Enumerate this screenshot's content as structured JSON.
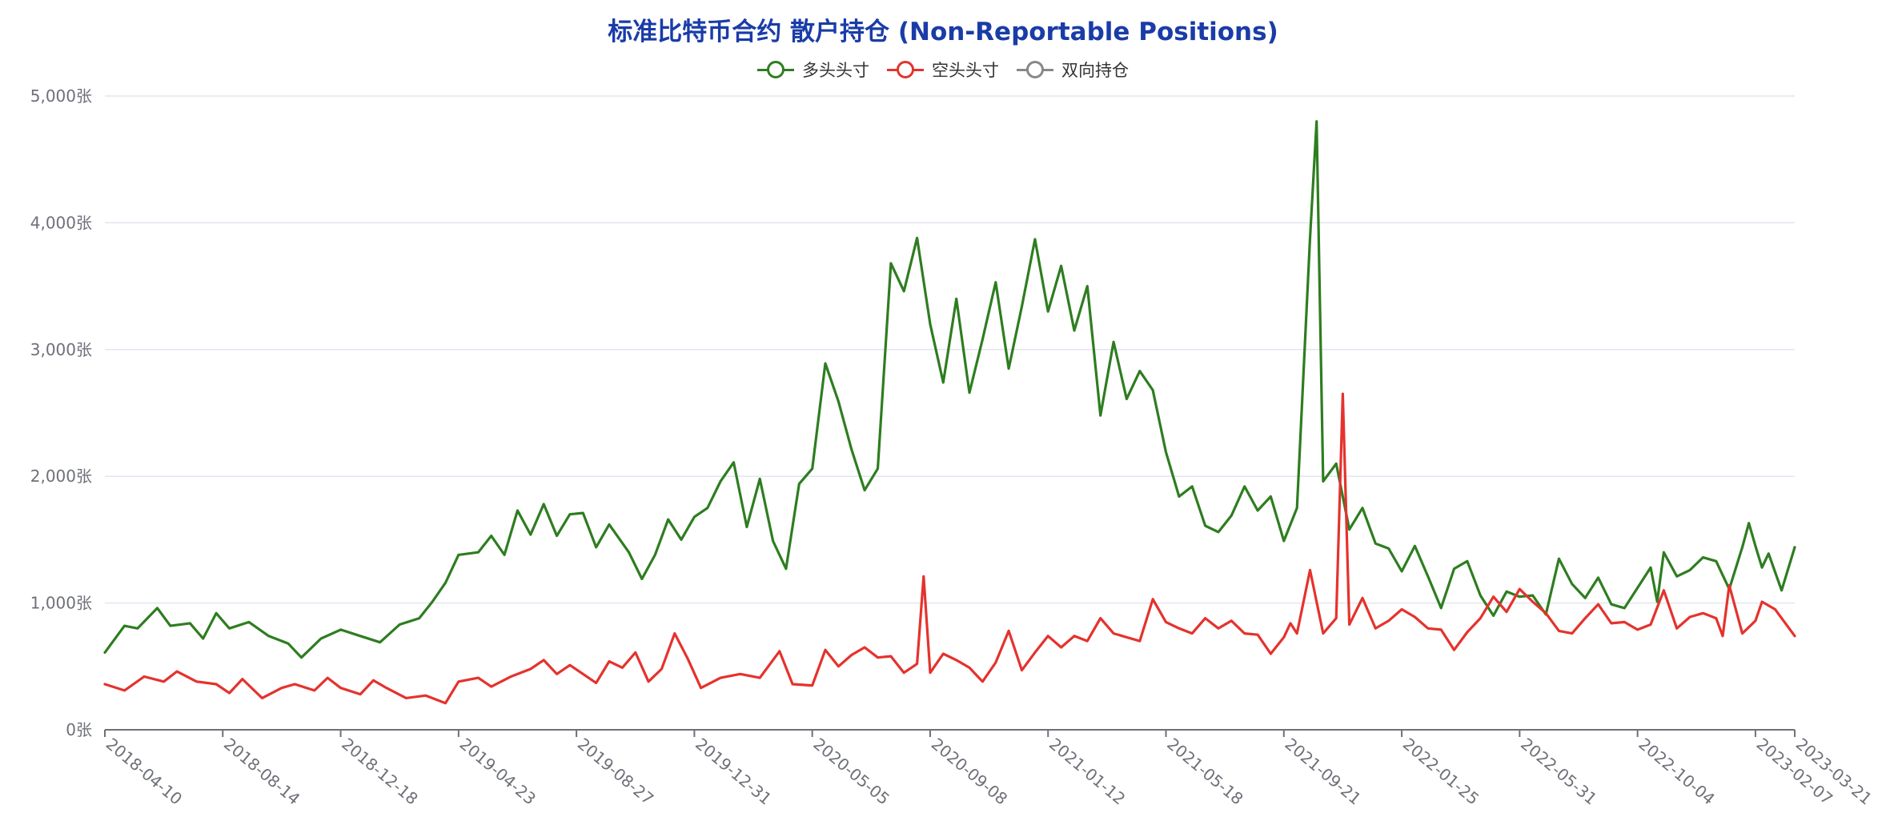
{
  "chart_data": {
    "type": "line",
    "title": "标准比特币合约 散户持仓 (Non-Reportable Positions)",
    "ylim": [
      0,
      5000
    ],
    "y_unit": "张",
    "y_ticks": [
      "0张",
      "1,000张",
      "2,000张",
      "3,000张",
      "4,000张",
      "5,000张"
    ],
    "y_tick_values": [
      0,
      1000,
      2000,
      3000,
      4000,
      5000
    ],
    "x_ticks": [
      "2018-04-10",
      "2018-08-14",
      "2018-12-18",
      "2019-04-23",
      "2019-08-27",
      "2019-12-31",
      "2020-05-05",
      "2020-09-08",
      "2021-01-12",
      "2021-05-18",
      "2021-09-21",
      "2022-01-25",
      "2022-05-31",
      "2022-10-04",
      "2023-02-07",
      "2023-03-21"
    ],
    "x_start": "2018-04-10",
    "x_end": "2023-03-21",
    "grid": true,
    "legend_position": "top-center",
    "title_color": "#1a3ca8",
    "series": [
      {
        "name": "多头头寸",
        "color": "#2e7d20",
        "visible": true,
        "points": [
          [
            "2018-04-10",
            610
          ],
          [
            "2018-05-01",
            820
          ],
          [
            "2018-05-15",
            800
          ],
          [
            "2018-06-05",
            960
          ],
          [
            "2018-06-19",
            820
          ],
          [
            "2018-07-10",
            840
          ],
          [
            "2018-07-24",
            720
          ],
          [
            "2018-08-07",
            920
          ],
          [
            "2018-08-21",
            800
          ],
          [
            "2018-09-11",
            850
          ],
          [
            "2018-10-02",
            740
          ],
          [
            "2018-10-23",
            680
          ],
          [
            "2018-11-06",
            570
          ],
          [
            "2018-11-27",
            720
          ],
          [
            "2018-12-18",
            790
          ],
          [
            "2019-01-08",
            740
          ],
          [
            "2019-01-29",
            690
          ],
          [
            "2019-02-19",
            830
          ],
          [
            "2019-03-12",
            880
          ],
          [
            "2019-03-26",
            1010
          ],
          [
            "2019-04-09",
            1160
          ],
          [
            "2019-04-23",
            1380
          ],
          [
            "2019-05-14",
            1400
          ],
          [
            "2019-05-28",
            1530
          ],
          [
            "2019-06-11",
            1380
          ],
          [
            "2019-06-25",
            1730
          ],
          [
            "2019-07-09",
            1540
          ],
          [
            "2019-07-23",
            1780
          ],
          [
            "2019-08-06",
            1530
          ],
          [
            "2019-08-20",
            1700
          ],
          [
            "2019-09-03",
            1710
          ],
          [
            "2019-09-17",
            1440
          ],
          [
            "2019-10-01",
            1620
          ],
          [
            "2019-10-22",
            1400
          ],
          [
            "2019-11-05",
            1190
          ],
          [
            "2019-11-19",
            1380
          ],
          [
            "2019-12-03",
            1660
          ],
          [
            "2019-12-17",
            1500
          ],
          [
            "2019-12-31",
            1680
          ],
          [
            "2020-01-14",
            1750
          ],
          [
            "2020-01-28",
            1960
          ],
          [
            "2020-02-11",
            2110
          ],
          [
            "2020-02-25",
            1600
          ],
          [
            "2020-03-10",
            1980
          ],
          [
            "2020-03-24",
            1490
          ],
          [
            "2020-04-07",
            1270
          ],
          [
            "2020-04-21",
            1940
          ],
          [
            "2020-05-05",
            2060
          ],
          [
            "2020-05-19",
            2890
          ],
          [
            "2020-06-02",
            2590
          ],
          [
            "2020-06-16",
            2210
          ],
          [
            "2020-06-30",
            1890
          ],
          [
            "2020-07-14",
            2060
          ],
          [
            "2020-07-28",
            3680
          ],
          [
            "2020-08-11",
            3460
          ],
          [
            "2020-08-25",
            3880
          ],
          [
            "2020-09-08",
            3200
          ],
          [
            "2020-09-22",
            2740
          ],
          [
            "2020-10-06",
            3400
          ],
          [
            "2020-10-20",
            2660
          ],
          [
            "2020-11-03",
            3080
          ],
          [
            "2020-11-17",
            3530
          ],
          [
            "2020-12-01",
            2850
          ],
          [
            "2020-12-15",
            3340
          ],
          [
            "2020-12-29",
            3870
          ],
          [
            "2021-01-12",
            3300
          ],
          [
            "2021-01-26",
            3660
          ],
          [
            "2021-02-09",
            3150
          ],
          [
            "2021-02-23",
            3500
          ],
          [
            "2021-03-09",
            2480
          ],
          [
            "2021-03-23",
            3060
          ],
          [
            "2021-04-06",
            2610
          ],
          [
            "2021-04-20",
            2830
          ],
          [
            "2021-05-04",
            2680
          ],
          [
            "2021-05-18",
            2190
          ],
          [
            "2021-06-01",
            1840
          ],
          [
            "2021-06-15",
            1920
          ],
          [
            "2021-06-29",
            1610
          ],
          [
            "2021-07-13",
            1560
          ],
          [
            "2021-07-27",
            1690
          ],
          [
            "2021-08-10",
            1920
          ],
          [
            "2021-08-24",
            1730
          ],
          [
            "2021-09-07",
            1840
          ],
          [
            "2021-09-21",
            1490
          ],
          [
            "2021-10-05",
            1750
          ],
          [
            "2021-10-19",
            3880
          ],
          [
            "2021-10-26",
            4800
          ],
          [
            "2021-11-02",
            1960
          ],
          [
            "2021-11-16",
            2100
          ],
          [
            "2021-11-30",
            1580
          ],
          [
            "2021-12-14",
            1750
          ],
          [
            "2021-12-28",
            1470
          ],
          [
            "2022-01-11",
            1430
          ],
          [
            "2022-01-25",
            1250
          ],
          [
            "2022-02-08",
            1450
          ],
          [
            "2022-02-22",
            1210
          ],
          [
            "2022-03-08",
            960
          ],
          [
            "2022-03-22",
            1270
          ],
          [
            "2022-04-05",
            1330
          ],
          [
            "2022-04-19",
            1060
          ],
          [
            "2022-05-03",
            900
          ],
          [
            "2022-05-17",
            1090
          ],
          [
            "2022-05-31",
            1050
          ],
          [
            "2022-06-14",
            1060
          ],
          [
            "2022-06-28",
            910
          ],
          [
            "2022-07-12",
            1350
          ],
          [
            "2022-07-26",
            1150
          ],
          [
            "2022-08-09",
            1040
          ],
          [
            "2022-08-23",
            1200
          ],
          [
            "2022-09-06",
            990
          ],
          [
            "2022-09-20",
            960
          ],
          [
            "2022-10-04",
            1120
          ],
          [
            "2022-10-18",
            1280
          ],
          [
            "2022-10-25",
            1010
          ],
          [
            "2022-11-01",
            1400
          ],
          [
            "2022-11-15",
            1210
          ],
          [
            "2022-11-29",
            1260
          ],
          [
            "2022-12-13",
            1360
          ],
          [
            "2022-12-27",
            1330
          ],
          [
            "2023-01-10",
            1110
          ],
          [
            "2023-01-24",
            1440
          ],
          [
            "2023-01-31",
            1630
          ],
          [
            "2023-02-07",
            1450
          ],
          [
            "2023-02-14",
            1280
          ],
          [
            "2023-02-21",
            1390
          ],
          [
            "2023-03-07",
            1100
          ],
          [
            "2023-03-21",
            1440
          ]
        ]
      },
      {
        "name": "空头头寸",
        "color": "#e5322d",
        "visible": true,
        "points": [
          [
            "2018-04-10",
            360
          ],
          [
            "2018-05-01",
            310
          ],
          [
            "2018-05-22",
            420
          ],
          [
            "2018-06-12",
            380
          ],
          [
            "2018-06-26",
            460
          ],
          [
            "2018-07-17",
            380
          ],
          [
            "2018-08-07",
            360
          ],
          [
            "2018-08-21",
            290
          ],
          [
            "2018-09-04",
            400
          ],
          [
            "2018-09-25",
            250
          ],
          [
            "2018-10-16",
            330
          ],
          [
            "2018-10-30",
            360
          ],
          [
            "2018-11-20",
            310
          ],
          [
            "2018-12-04",
            410
          ],
          [
            "2018-12-18",
            330
          ],
          [
            "2019-01-08",
            280
          ],
          [
            "2019-01-22",
            390
          ],
          [
            "2019-02-05",
            330
          ],
          [
            "2019-02-26",
            250
          ],
          [
            "2019-03-19",
            270
          ],
          [
            "2019-04-09",
            210
          ],
          [
            "2019-04-23",
            380
          ],
          [
            "2019-05-14",
            410
          ],
          [
            "2019-05-28",
            340
          ],
          [
            "2019-06-18",
            420
          ],
          [
            "2019-07-09",
            480
          ],
          [
            "2019-07-23",
            550
          ],
          [
            "2019-08-06",
            440
          ],
          [
            "2019-08-20",
            510
          ],
          [
            "2019-09-03",
            440
          ],
          [
            "2019-09-17",
            370
          ],
          [
            "2019-10-01",
            540
          ],
          [
            "2019-10-15",
            490
          ],
          [
            "2019-10-29",
            610
          ],
          [
            "2019-11-12",
            380
          ],
          [
            "2019-11-26",
            480
          ],
          [
            "2019-12-10",
            760
          ],
          [
            "2019-12-24",
            560
          ],
          [
            "2020-01-07",
            330
          ],
          [
            "2020-01-28",
            410
          ],
          [
            "2020-02-18",
            440
          ],
          [
            "2020-03-10",
            410
          ],
          [
            "2020-03-31",
            620
          ],
          [
            "2020-04-14",
            360
          ],
          [
            "2020-05-05",
            350
          ],
          [
            "2020-05-19",
            630
          ],
          [
            "2020-06-02",
            500
          ],
          [
            "2020-06-16",
            590
          ],
          [
            "2020-06-30",
            650
          ],
          [
            "2020-07-14",
            570
          ],
          [
            "2020-07-28",
            580
          ],
          [
            "2020-08-11",
            450
          ],
          [
            "2020-08-25",
            520
          ],
          [
            "2020-09-01",
            1210
          ],
          [
            "2020-09-08",
            450
          ],
          [
            "2020-09-22",
            600
          ],
          [
            "2020-10-06",
            550
          ],
          [
            "2020-10-20",
            490
          ],
          [
            "2020-11-03",
            380
          ],
          [
            "2020-11-17",
            530
          ],
          [
            "2020-12-01",
            780
          ],
          [
            "2020-12-15",
            470
          ],
          [
            "2020-12-29",
            610
          ],
          [
            "2021-01-12",
            740
          ],
          [
            "2021-01-26",
            650
          ],
          [
            "2021-02-09",
            740
          ],
          [
            "2021-02-23",
            700
          ],
          [
            "2021-03-09",
            880
          ],
          [
            "2021-03-23",
            760
          ],
          [
            "2021-04-06",
            730
          ],
          [
            "2021-04-20",
            700
          ],
          [
            "2021-05-04",
            1030
          ],
          [
            "2021-05-18",
            850
          ],
          [
            "2021-06-01",
            800
          ],
          [
            "2021-06-15",
            760
          ],
          [
            "2021-06-29",
            880
          ],
          [
            "2021-07-13",
            800
          ],
          [
            "2021-07-27",
            860
          ],
          [
            "2021-08-10",
            760
          ],
          [
            "2021-08-24",
            750
          ],
          [
            "2021-09-07",
            600
          ],
          [
            "2021-09-21",
            730
          ],
          [
            "2021-09-28",
            840
          ],
          [
            "2021-10-05",
            760
          ],
          [
            "2021-10-19",
            1260
          ],
          [
            "2021-11-02",
            760
          ],
          [
            "2021-11-16",
            880
          ],
          [
            "2021-11-23",
            2650
          ],
          [
            "2021-11-30",
            830
          ],
          [
            "2021-12-14",
            1040
          ],
          [
            "2021-12-28",
            800
          ],
          [
            "2022-01-11",
            860
          ],
          [
            "2022-01-25",
            950
          ],
          [
            "2022-02-08",
            890
          ],
          [
            "2022-02-22",
            800
          ],
          [
            "2022-03-08",
            790
          ],
          [
            "2022-03-22",
            630
          ],
          [
            "2022-04-05",
            770
          ],
          [
            "2022-04-19",
            880
          ],
          [
            "2022-05-03",
            1050
          ],
          [
            "2022-05-17",
            930
          ],
          [
            "2022-05-31",
            1110
          ],
          [
            "2022-06-14",
            1010
          ],
          [
            "2022-06-28",
            920
          ],
          [
            "2022-07-12",
            780
          ],
          [
            "2022-07-26",
            760
          ],
          [
            "2022-08-09",
            880
          ],
          [
            "2022-08-23",
            990
          ],
          [
            "2022-09-06",
            840
          ],
          [
            "2022-09-20",
            850
          ],
          [
            "2022-10-04",
            790
          ],
          [
            "2022-10-18",
            830
          ],
          [
            "2022-11-01",
            1100
          ],
          [
            "2022-11-15",
            800
          ],
          [
            "2022-11-29",
            890
          ],
          [
            "2022-12-13",
            920
          ],
          [
            "2022-12-27",
            880
          ],
          [
            "2023-01-03",
            740
          ],
          [
            "2023-01-10",
            1140
          ],
          [
            "2023-01-24",
            760
          ],
          [
            "2023-02-07",
            860
          ],
          [
            "2023-02-14",
            1010
          ],
          [
            "2023-02-28",
            950
          ],
          [
            "2023-03-21",
            740
          ]
        ]
      },
      {
        "name": "双向持仓",
        "color": "#888888",
        "visible": false,
        "points": []
      }
    ]
  },
  "colors": {
    "grid": "#e0e6f1",
    "axis": "#6e7079"
  }
}
